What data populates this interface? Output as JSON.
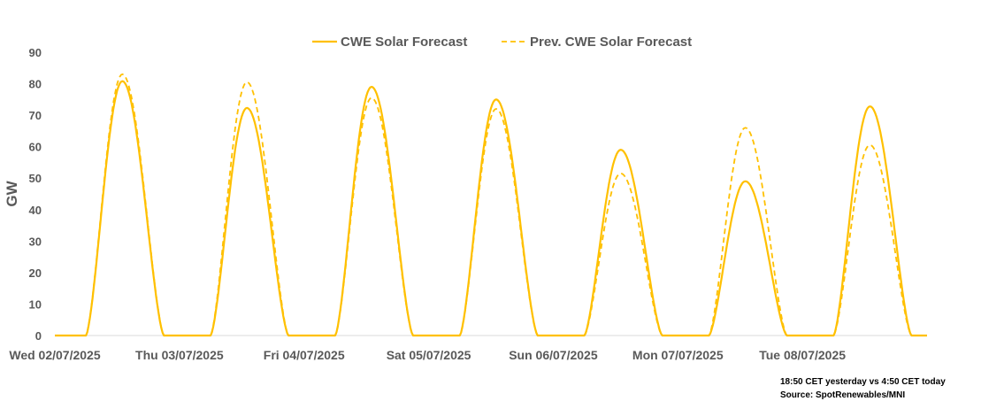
{
  "chart_data": {
    "type": "line",
    "title": "",
    "xlabel": "",
    "ylabel": "GW",
    "ylim": [
      0,
      90
    ],
    "yticks": [
      0,
      10,
      20,
      30,
      40,
      50,
      60,
      70,
      80,
      90
    ],
    "xlim": [
      0,
      168
    ],
    "categories": [
      "Wed 02/07/2025",
      "Thu 03/07/2025",
      "Fri 04/07/2025",
      "Sat 05/07/2025",
      "Sun 06/07/2025",
      "Mon 07/07/2025",
      "Tue 08/07/2025"
    ],
    "category_hours": [
      0,
      24,
      48,
      72,
      96,
      120,
      144
    ],
    "legend_position": "top",
    "series": [
      {
        "name": "CWE Solar Forecast",
        "style": "solid",
        "color": "#FFC000",
        "daily_shape": {
          "sunrise_hour": 6,
          "sunset_hour": 21,
          "peak_hour": 13
        },
        "daily_peaks": [
          80.8,
          72.3,
          79.0,
          75.0,
          59.0,
          49.0,
          72.8
        ]
      },
      {
        "name": "Prev. CWE Solar Forecast",
        "style": "dashed",
        "color": "#FFC000",
        "daily_shape": {
          "sunrise_hour": 6,
          "sunset_hour": 21,
          "peak_hour": 13
        },
        "daily_peaks": [
          83.0,
          80.5,
          75.5,
          72.0,
          51.5,
          66.0,
          60.5
        ]
      }
    ]
  },
  "footnote": {
    "line1": "18:50 CET yesterday vs  4:50 CET today",
    "line2": "Source: SpotRenewables/MNI"
  }
}
